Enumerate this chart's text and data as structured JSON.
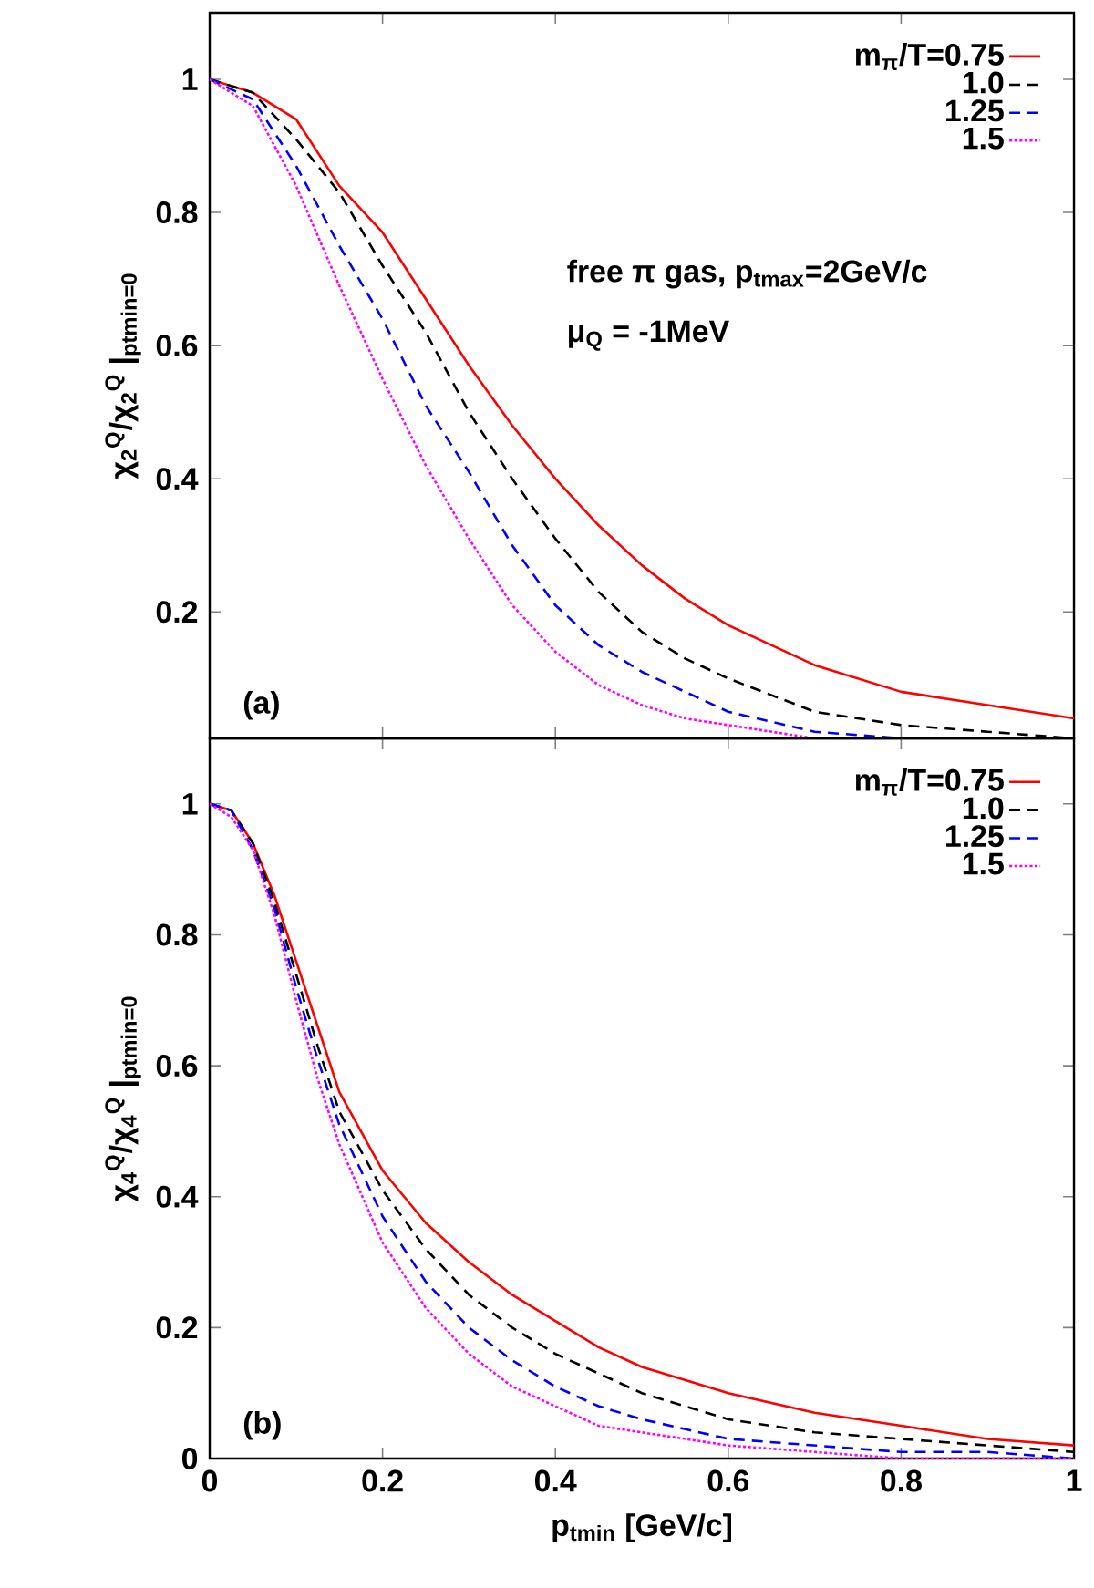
{
  "chart_data": [
    {
      "type": "line",
      "ylabel": "χ$_{2}$$^{Q}$/χ$_{2}$$^{Q}$ |$_{ptmin=0}$",
      "annotations": [
        "free π gas, p$_{tmax}$=2GeV/c",
        "μ$_{Q}$ = -1MeV",
        "(a)"
      ],
      "x": [
        0,
        0.05,
        0.1,
        0.15,
        0.2,
        0.25,
        0.3,
        0.35,
        0.4,
        0.45,
        0.5,
        0.55,
        0.6,
        0.7,
        0.8,
        0.9,
        1.0
      ],
      "series": [
        {
          "name": "m$_{π}$/T=0.75",
          "color": "#ff0000",
          "line_style": "solid",
          "values": [
            1,
            0.98,
            0.94,
            0.84,
            0.77,
            0.67,
            0.57,
            0.48,
            0.4,
            0.33,
            0.27,
            0.22,
            0.18,
            0.12,
            0.08,
            0.06,
            0.04
          ]
        },
        {
          "name": "1.0",
          "color": "#000000",
          "line_style": "dashed",
          "values": [
            1,
            0.98,
            0.91,
            0.83,
            0.72,
            0.62,
            0.5,
            0.4,
            0.31,
            0.23,
            0.17,
            0.13,
            0.1,
            0.05,
            0.03,
            0.02,
            0.01
          ]
        },
        {
          "name": "1.25",
          "color": "#0000ff",
          "line_style": "dashed",
          "values": [
            1,
            0.97,
            0.87,
            0.75,
            0.64,
            0.51,
            0.41,
            0.3,
            0.21,
            0.15,
            0.11,
            0.08,
            0.05,
            0.02,
            0.01,
            null,
            null
          ]
        },
        {
          "name": "1.5",
          "color": "#ff00ff",
          "line_style": "dotted",
          "values": [
            1,
            0.96,
            0.84,
            0.69,
            0.55,
            0.42,
            0.31,
            0.21,
            0.14,
            0.09,
            0.06,
            0.04,
            0.03,
            0.01,
            null,
            null,
            null
          ]
        }
      ],
      "xlim": [
        0,
        1
      ],
      "ylim": [
        0.01,
        1.1
      ],
      "xticks": [
        0,
        0.2,
        0.4,
        0.6,
        0.8,
        1
      ],
      "yticks": [
        0.2,
        0.4,
        0.6,
        0.8,
        1
      ],
      "tick_labels": "y",
      "legend": "top right",
      "grid": false
    },
    {
      "type": "line",
      "xlabel": "p$_{tmin}$ [GeV/c]",
      "ylabel": "χ$_{4}$$^{Q}$/χ$_{4}$$^{Q}$ |$_{ptmin=0}$",
      "annotations": [
        "(b)"
      ],
      "x": [
        0,
        0.025,
        0.05,
        0.075,
        0.1,
        0.125,
        0.15,
        0.2,
        0.25,
        0.3,
        0.35,
        0.4,
        0.45,
        0.5,
        0.6,
        0.7,
        0.8,
        0.9,
        1.0
      ],
      "series": [
        {
          "name": "m$_{π}$/T=0.75",
          "color": "#ff0000",
          "line_style": "solid",
          "values": [
            1,
            0.99,
            0.94,
            0.86,
            0.76,
            0.66,
            0.56,
            0.44,
            0.36,
            0.3,
            0.25,
            0.21,
            0.17,
            0.14,
            0.1,
            0.07,
            0.05,
            0.03,
            0.02
          ]
        },
        {
          "name": "1.0",
          "color": "#000000",
          "line_style": "dashed",
          "values": [
            1,
            0.99,
            0.94,
            0.85,
            0.74,
            0.63,
            0.53,
            0.41,
            0.32,
            0.25,
            0.2,
            0.16,
            0.13,
            0.1,
            0.06,
            0.04,
            0.03,
            0.02,
            0.01
          ]
        },
        {
          "name": "1.25",
          "color": "#0000ff",
          "line_style": "dashed",
          "values": [
            1,
            0.99,
            0.93,
            0.84,
            0.72,
            0.61,
            0.51,
            0.37,
            0.27,
            0.2,
            0.15,
            0.11,
            0.08,
            0.06,
            0.03,
            0.02,
            0.01,
            0.01,
            0
          ]
        },
        {
          "name": "1.5",
          "color": "#ff00ff",
          "line_style": "dotted",
          "values": [
            1,
            0.98,
            0.93,
            0.83,
            0.7,
            0.58,
            0.48,
            0.33,
            0.23,
            0.16,
            0.11,
            0.08,
            0.05,
            0.04,
            0.02,
            0.01,
            0,
            0,
            0
          ]
        }
      ],
      "xlim": [
        0,
        1
      ],
      "ylim": [
        0,
        1.1
      ],
      "xticks": [
        0,
        0.2,
        0.4,
        0.6,
        0.8,
        1
      ],
      "yticks": [
        0,
        0.2,
        0.4,
        0.6,
        0.8,
        1
      ],
      "legend": "top right",
      "grid": false
    }
  ]
}
